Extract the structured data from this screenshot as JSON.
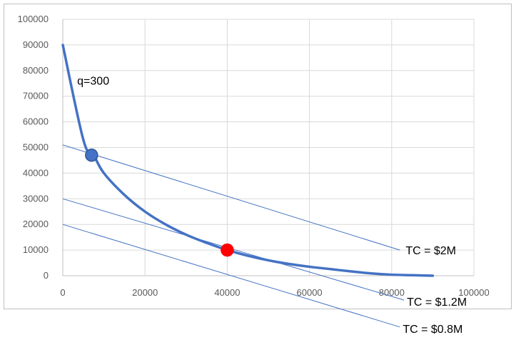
{
  "chart_data": {
    "type": "line",
    "title": "",
    "xlabel": "",
    "ylabel": "",
    "xlim": [
      0,
      100000
    ],
    "ylim": [
      0,
      100000
    ],
    "x_ticks": [
      0,
      20000,
      40000,
      60000,
      80000,
      100000
    ],
    "y_ticks": [
      0,
      10000,
      20000,
      30000,
      40000,
      50000,
      60000,
      70000,
      80000,
      90000,
      100000
    ],
    "grid": true,
    "legend": "none",
    "colors": {
      "curve": "#4472c4",
      "isocost": "#4472c4",
      "point_tangent": "#4472c4",
      "point_cost_min": "#ff0000",
      "grid": "#d9d9d9"
    },
    "series": [
      {
        "values": [
          {
            "x": 0,
            "y": 90000
          },
          {
            "x": 5000,
            "y": 53000
          },
          {
            "x": 7500,
            "y": 47000
          },
          {
            "x": 10000,
            "y": 40000
          },
          {
            "x": 15000,
            "y": 31500
          },
          {
            "x": 20000,
            "y": 25000
          },
          {
            "x": 25000,
            "y": 20000
          },
          {
            "x": 30000,
            "y": 16000
          },
          {
            "x": 35000,
            "y": 12800
          },
          {
            "x": 40000,
            "y": 10000
          },
          {
            "x": 45000,
            "y": 7800
          },
          {
            "x": 50000,
            "y": 6000
          },
          {
            "x": 55000,
            "y": 4600
          },
          {
            "x": 60000,
            "y": 3500
          },
          {
            "x": 65000,
            "y": 2600
          },
          {
            "x": 70000,
            "y": 1700
          },
          {
            "x": 75000,
            "y": 900
          },
          {
            "x": 80000,
            "y": 400
          },
          {
            "x": 85000,
            "y": 200
          },
          {
            "x": 90000,
            "y": 0
          }
        ]
      }
    ],
    "isocost_lines": [
      {
        "label": "TC = $2M",
        "x1": 0,
        "y1": 51000,
        "x2": 82000,
        "y2": 10000
      },
      {
        "label": "TC = $1.2M",
        "x1": 0,
        "y1": 30000,
        "x2": 83000,
        "y2": -9500
      },
      {
        "label": "TC = $0.8M",
        "x1": 0,
        "y1": 20000,
        "x2": 82000,
        "y2": -20000
      }
    ],
    "points": [
      {
        "x": 7000,
        "y": 47000,
        "color": "#4472c4"
      },
      {
        "x": 40000,
        "y": 10000,
        "color": "#ff0000"
      }
    ],
    "annotations": [
      {
        "text": "q=300"
      }
    ]
  }
}
